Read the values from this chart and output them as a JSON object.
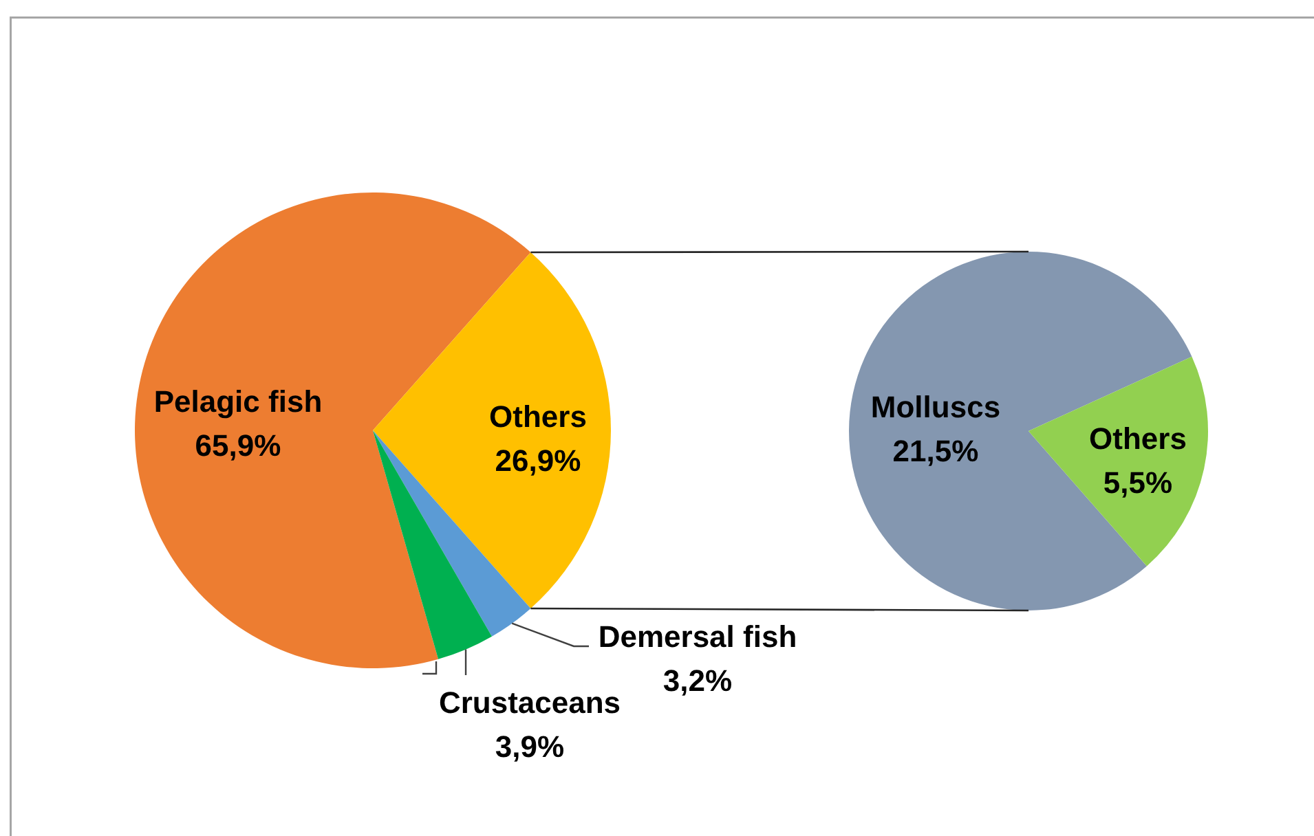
{
  "chart_data": [
    {
      "type": "pie",
      "categories": [
        "Pelagic fish",
        "Others",
        "Demersal fish",
        "Crustaceans"
      ],
      "values": [
        65.9,
        26.9,
        3.2,
        3.9
      ],
      "colors": [
        "#ed7d31",
        "#ffc000",
        "#5b9bd5",
        "#00b050"
      ],
      "value_labels": [
        "65,9%",
        "26,9%",
        "3,2%",
        "3,9%"
      ]
    },
    {
      "type": "pie",
      "categories": [
        "Molluscs",
        "Others"
      ],
      "values": [
        21.5,
        5.5
      ],
      "colors": [
        "#8497b0",
        "#92d050"
      ],
      "value_labels": [
        "21,5%",
        "5,5%"
      ]
    }
  ]
}
